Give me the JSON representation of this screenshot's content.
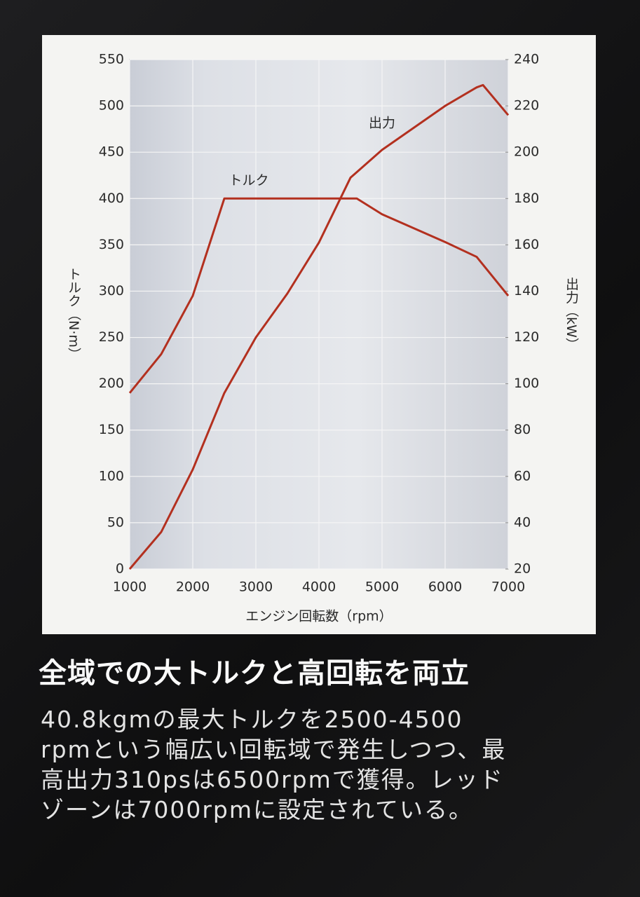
{
  "chart_data": {
    "type": "line",
    "xlabel": "エンジン回転数（rpm）",
    "ylabel": "トルク（N·m）",
    "y2label": "出力（kW）",
    "annotations": [
      "トルク",
      "出力"
    ],
    "xlim": [
      1000,
      7000
    ],
    "xticks": [
      1000,
      2000,
      3000,
      4000,
      5000,
      6000,
      7000
    ],
    "ylim": [
      0,
      550
    ],
    "yticks": [
      0,
      50,
      100,
      150,
      200,
      250,
      300,
      350,
      400,
      450,
      500,
      550
    ],
    "y2lim": [
      20,
      240
    ],
    "y2ticks": [
      20,
      40,
      60,
      80,
      100,
      120,
      140,
      160,
      180,
      200,
      220,
      240
    ],
    "grid": true,
    "series": [
      {
        "name": "トルク",
        "color": "#b3301f",
        "x": [
          1000,
          1500,
          2000,
          2500,
          4600,
          5000,
          6000,
          6500,
          7000
        ],
        "values": [
          190,
          232,
          295,
          400,
          400,
          383,
          353,
          337,
          295
        ]
      },
      {
        "name": "出力",
        "color": "#b3301f",
        "axis": "y2",
        "x": [
          1000,
          1500,
          2000,
          2500,
          3000,
          3500,
          4000,
          4500,
          5000,
          6000,
          6500,
          6600,
          7000
        ],
        "values": [
          20,
          36,
          63,
          96,
          120,
          139,
          161,
          189,
          201,
          220,
          228,
          229,
          216
        ]
      }
    ]
  },
  "caption": {
    "heading": "全域での大トルクと高回転を両立",
    "body_lines": [
      "40.8kgmの最大トルクを2500-4500",
      "rpmという幅広い回転域で発生しつつ、最",
      "高出力310psは6500rpmで獲得。レッド",
      "ゾーンは7000rpmに設定されている。"
    ]
  }
}
